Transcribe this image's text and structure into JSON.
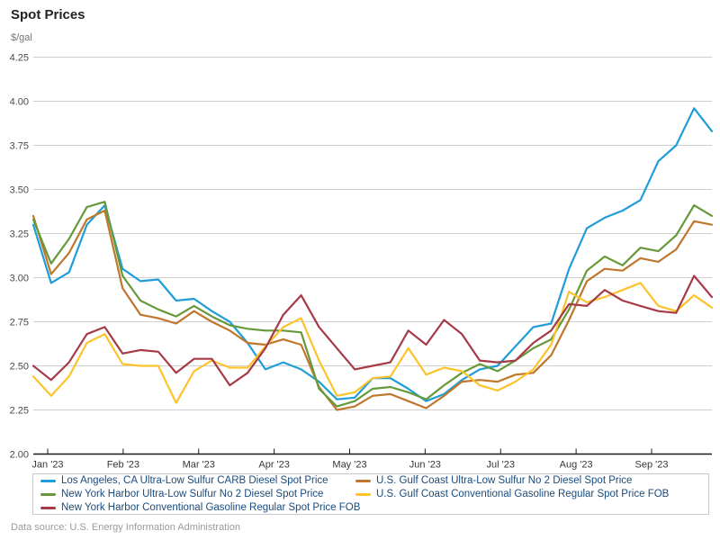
{
  "title": "Spot Prices",
  "units_label": "$/gal",
  "source_note": "Data source: U.S. Energy Information Administration",
  "chart_data": {
    "type": "line",
    "title": "Spot Prices",
    "ylabel": "$/gal",
    "grid": "horizontal",
    "legend_position": "bottom-boxed",
    "y_axis": {
      "min": 2.0,
      "max": 4.25,
      "step": 0.25,
      "ticks": [
        "2.00",
        "2.25",
        "2.50",
        "2.75",
        "3.00",
        "3.25",
        "3.50",
        "3.75",
        "4.00",
        "4.25"
      ]
    },
    "x_axis": {
      "ticks": [
        "Jan '23",
        "Feb '23",
        "Mar '23",
        "Apr '23",
        "May '23",
        "Jun '23",
        "Jul '23",
        "Aug '23",
        "Sep '23"
      ]
    },
    "x_dates": [
      "2022-12-30",
      "2023-01-06",
      "2023-01-13",
      "2023-01-20",
      "2023-01-27",
      "2023-02-03",
      "2023-02-10",
      "2023-02-17",
      "2023-02-24",
      "2023-03-03",
      "2023-03-10",
      "2023-03-17",
      "2023-03-24",
      "2023-03-31",
      "2023-04-07",
      "2023-04-14",
      "2023-04-21",
      "2023-04-28",
      "2023-05-05",
      "2023-05-12",
      "2023-05-19",
      "2023-05-26",
      "2023-06-02",
      "2023-06-09",
      "2023-06-16",
      "2023-06-23",
      "2023-06-30",
      "2023-07-07",
      "2023-07-14",
      "2023-07-21",
      "2023-07-28",
      "2023-08-04",
      "2023-08-11",
      "2023-08-18",
      "2023-08-25",
      "2023-09-01",
      "2023-09-08",
      "2023-09-15",
      "2023-09-22"
    ],
    "series": [
      {
        "label": "Los Angeles, CA Ultra-Low Sulfur CARB Diesel Spot Price",
        "color": "#1e9dd8",
        "values": [
          3.3,
          2.97,
          3.03,
          3.3,
          3.41,
          3.05,
          2.98,
          2.99,
          2.87,
          2.88,
          2.81,
          2.75,
          2.63,
          2.48,
          2.52,
          2.48,
          2.41,
          2.31,
          2.32,
          2.43,
          2.43,
          2.37,
          2.3,
          2.34,
          2.42,
          2.48,
          2.5,
          2.61,
          2.72,
          2.74,
          3.05,
          3.28,
          3.34,
          3.38,
          3.44,
          3.66,
          3.75,
          3.96,
          3.83
        ]
      },
      {
        "label": "U.S. Gulf Coast Ultra-Low Sulfur No 2 Diesel Spot Price",
        "color": "#c0762c",
        "values": [
          3.35,
          3.02,
          3.14,
          3.33,
          3.38,
          2.94,
          2.79,
          2.77,
          2.74,
          2.81,
          2.75,
          2.7,
          2.63,
          2.62,
          2.65,
          2.62,
          2.38,
          2.25,
          2.27,
          2.33,
          2.34,
          2.3,
          2.26,
          2.33,
          2.41,
          2.42,
          2.41,
          2.45,
          2.46,
          2.56,
          2.76,
          2.98,
          3.05,
          3.04,
          3.11,
          3.09,
          3.16,
          3.32,
          3.3
        ]
      },
      {
        "label": "New York Harbor Ultra-Low Sulfur No 2 Diesel Spot Price",
        "color": "#65993a",
        "values": [
          3.33,
          3.08,
          3.22,
          3.4,
          3.43,
          3.01,
          2.87,
          2.82,
          2.78,
          2.84,
          2.78,
          2.73,
          2.71,
          2.7,
          2.7,
          2.69,
          2.37,
          2.27,
          2.3,
          2.37,
          2.38,
          2.35,
          2.31,
          2.39,
          2.46,
          2.51,
          2.47,
          2.53,
          2.6,
          2.65,
          2.82,
          3.04,
          3.12,
          3.07,
          3.17,
          3.15,
          3.24,
          3.41,
          3.35
        ]
      },
      {
        "label": "U.S. Gulf Coast Conventional Gasoline Regular Spot Price FOB",
        "color": "#fdc32b",
        "values": [
          2.44,
          2.33,
          2.44,
          2.63,
          2.68,
          2.51,
          2.5,
          2.5,
          2.29,
          2.47,
          2.53,
          2.49,
          2.49,
          2.61,
          2.72,
          2.77,
          2.53,
          2.33,
          2.35,
          2.43,
          2.44,
          2.6,
          2.45,
          2.49,
          2.47,
          2.39,
          2.36,
          2.41,
          2.48,
          2.62,
          2.92,
          2.86,
          2.89,
          2.93,
          2.97,
          2.84,
          2.81,
          2.9,
          2.83
        ]
      },
      {
        "label": "New York Harbor Conventional Gasoline Regular Spot Price FOB",
        "color": "#a63a47",
        "values": [
          2.5,
          2.42,
          2.52,
          2.68,
          2.72,
          2.57,
          2.59,
          2.58,
          2.46,
          2.54,
          2.54,
          2.39,
          2.46,
          2.6,
          2.79,
          2.9,
          2.72,
          2.6,
          2.48,
          2.5,
          2.52,
          2.7,
          2.62,
          2.76,
          2.68,
          2.53,
          2.52,
          2.53,
          2.63,
          2.7,
          2.85,
          2.84,
          2.93,
          2.87,
          2.84,
          2.81,
          2.8,
          3.01,
          2.89
        ]
      }
    ],
    "style": {
      "gridline_color": "#cfcfcf",
      "axis_color": "#1a1a1a",
      "y_tick_label_color": "#4a4a4a",
      "x_tick_label_color": "#363636",
      "legend_text_color": "#1a4b7d"
    }
  }
}
